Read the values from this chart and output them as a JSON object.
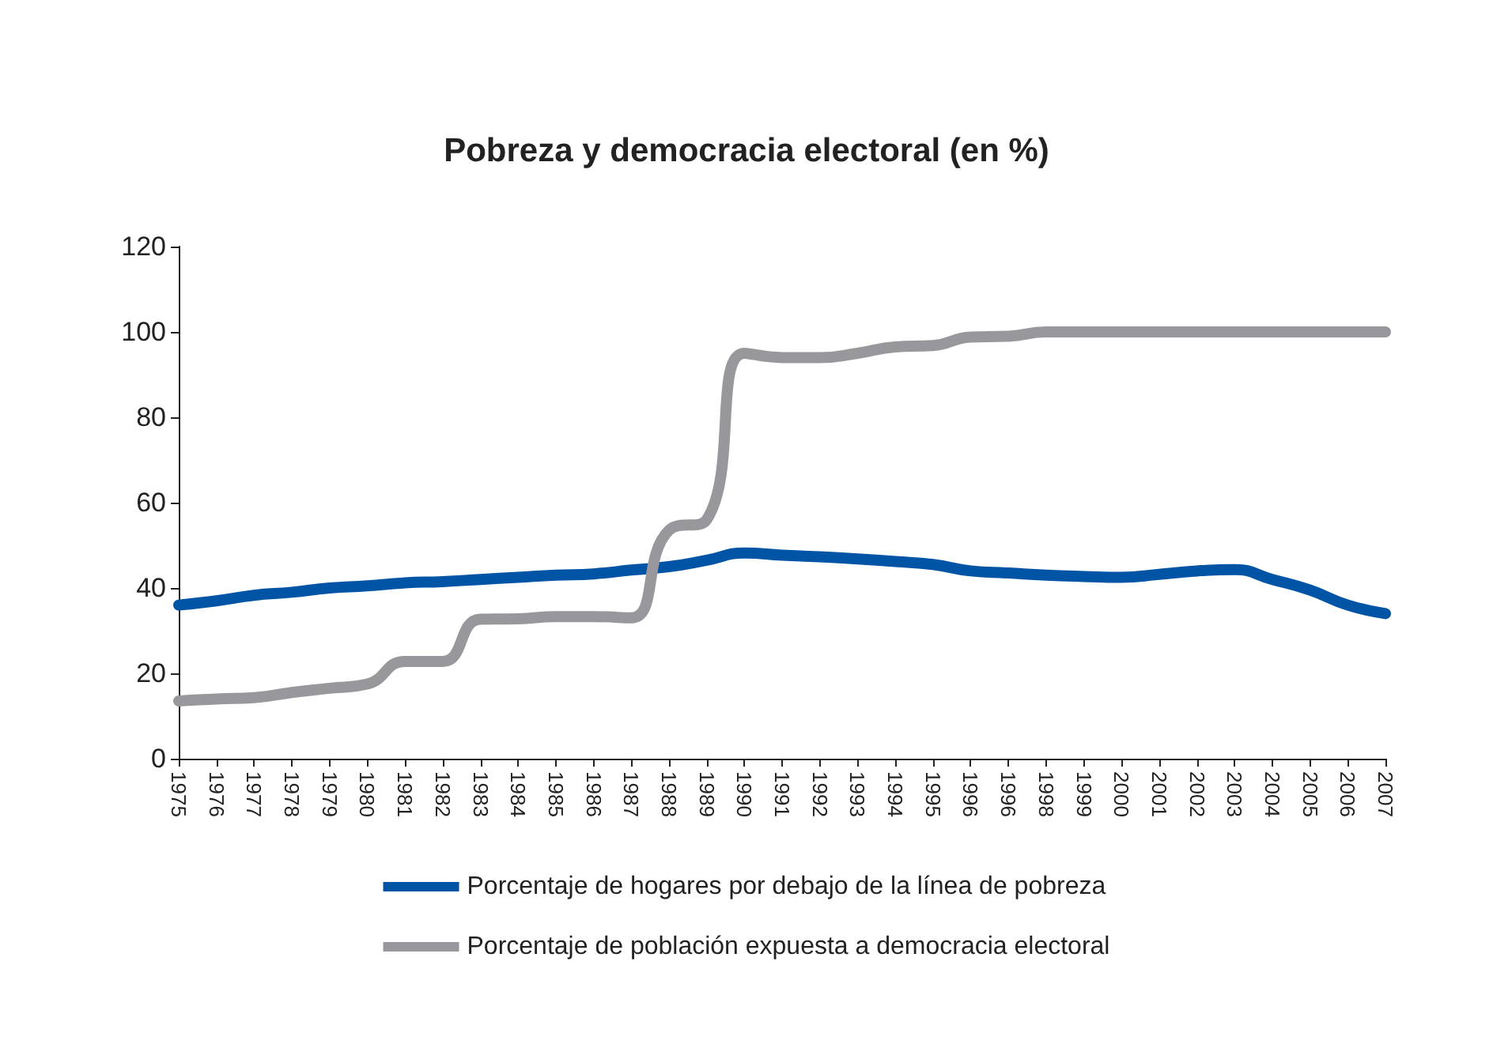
{
  "chart_data": {
    "type": "line",
    "title": "Pobreza y democracia electoral (en %)",
    "categories": [
      "1975",
      "1976",
      "1977",
      "1978",
      "1979",
      "1980",
      "1981",
      "1982",
      "1983",
      "1984",
      "1985",
      "1986",
      "1987",
      "1988",
      "1989",
      "1990",
      "1991",
      "1992",
      "1993",
      "1994",
      "1995",
      "1996",
      "1996",
      "1998",
      "1999",
      "2000",
      "2001",
      "2002",
      "2003",
      "2004",
      "2005",
      "2006",
      "2007"
    ],
    "series": [
      {
        "name": "Porcentaje de hogares por debajo de la línea de pobreza",
        "color": "#0054a6",
        "values": [
          36,
          37,
          38.3,
          39,
          40,
          40.5,
          41.2,
          41.5,
          42,
          42.5,
          43,
          43.3,
          44.2,
          45,
          46.5,
          48.2,
          47.7,
          47.3,
          46.8,
          46.2,
          45.5,
          44,
          43.5,
          43,
          42.7,
          42.5,
          43.2,
          44,
          44.3,
          42,
          39.5,
          36,
          34
        ]
      },
      {
        "name": "Porcentaje de población expuesta a democracia electoral",
        "color": "#98989c",
        "values": [
          13.5,
          14,
          14.3,
          15.5,
          16.5,
          17.5,
          22.8,
          22.8,
          32.7,
          32.8,
          33.3,
          33.3,
          33,
          53.5,
          56,
          95,
          94,
          94,
          95,
          96.5,
          96.8,
          98.8,
          99,
          100,
          100,
          100,
          100,
          100,
          100,
          100,
          100,
          100,
          100
        ]
      }
    ],
    "ylim": [
      0,
      120
    ],
    "yticks": [
      0,
      20,
      40,
      60,
      80,
      100,
      120
    ],
    "grid": false,
    "legend": "bottom",
    "line_style": "solid"
  }
}
